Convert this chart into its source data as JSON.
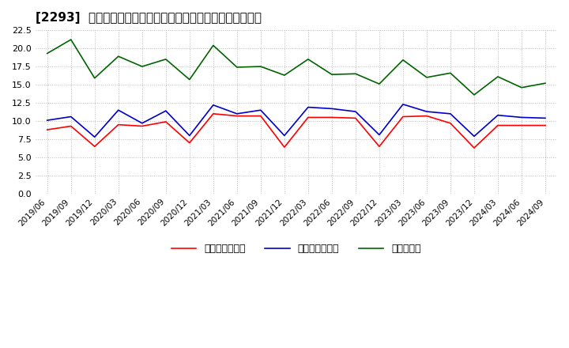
{
  "title": "[2293]  売上債権回転率、買入債務回転率、在庫回転率の推移",
  "x_labels": [
    "2019/06",
    "2019/09",
    "2019/12",
    "2020/03",
    "2020/06",
    "2020/09",
    "2020/12",
    "2021/03",
    "2021/06",
    "2021/09",
    "2021/12",
    "2022/03",
    "2022/06",
    "2022/09",
    "2022/12",
    "2023/03",
    "2023/06",
    "2023/09",
    "2023/12",
    "2024/03",
    "2024/06",
    "2024/09"
  ],
  "uriage_saiken": [
    8.8,
    9.3,
    6.5,
    9.5,
    9.3,
    9.9,
    7.0,
    11.0,
    10.7,
    10.7,
    6.4,
    10.5,
    10.5,
    10.4,
    6.5,
    10.6,
    10.7,
    9.7,
    6.3,
    9.4,
    9.4,
    9.4
  ],
  "kainyu_saimu": [
    10.1,
    10.6,
    7.8,
    11.5,
    9.7,
    11.4,
    8.0,
    12.2,
    11.0,
    11.5,
    8.0,
    11.9,
    11.7,
    11.3,
    8.1,
    12.3,
    11.3,
    11.0,
    7.9,
    10.8,
    10.5,
    10.4
  ],
  "zaiko": [
    19.3,
    21.2,
    15.9,
    18.9,
    17.5,
    18.5,
    15.7,
    20.4,
    17.4,
    17.5,
    16.3,
    18.5,
    16.4,
    16.5,
    15.1,
    18.4,
    16.0,
    16.6,
    13.6,
    16.1,
    14.6,
    15.2
  ],
  "uriage_label": "売上債権回転率",
  "kainyu_label": "買入債務回転率",
  "zaiko_label": "在庫回転率",
  "uriage_color": "#ff0000",
  "kainyu_color": "#0000cc",
  "zaiko_color": "#006400",
  "ylim": [
    0.0,
    22.5
  ],
  "yticks": [
    0.0,
    2.5,
    5.0,
    7.5,
    10.0,
    12.5,
    15.0,
    17.5,
    20.0,
    22.5
  ],
  "background_color": "#ffffff",
  "grid_color": "#bbbbbb"
}
